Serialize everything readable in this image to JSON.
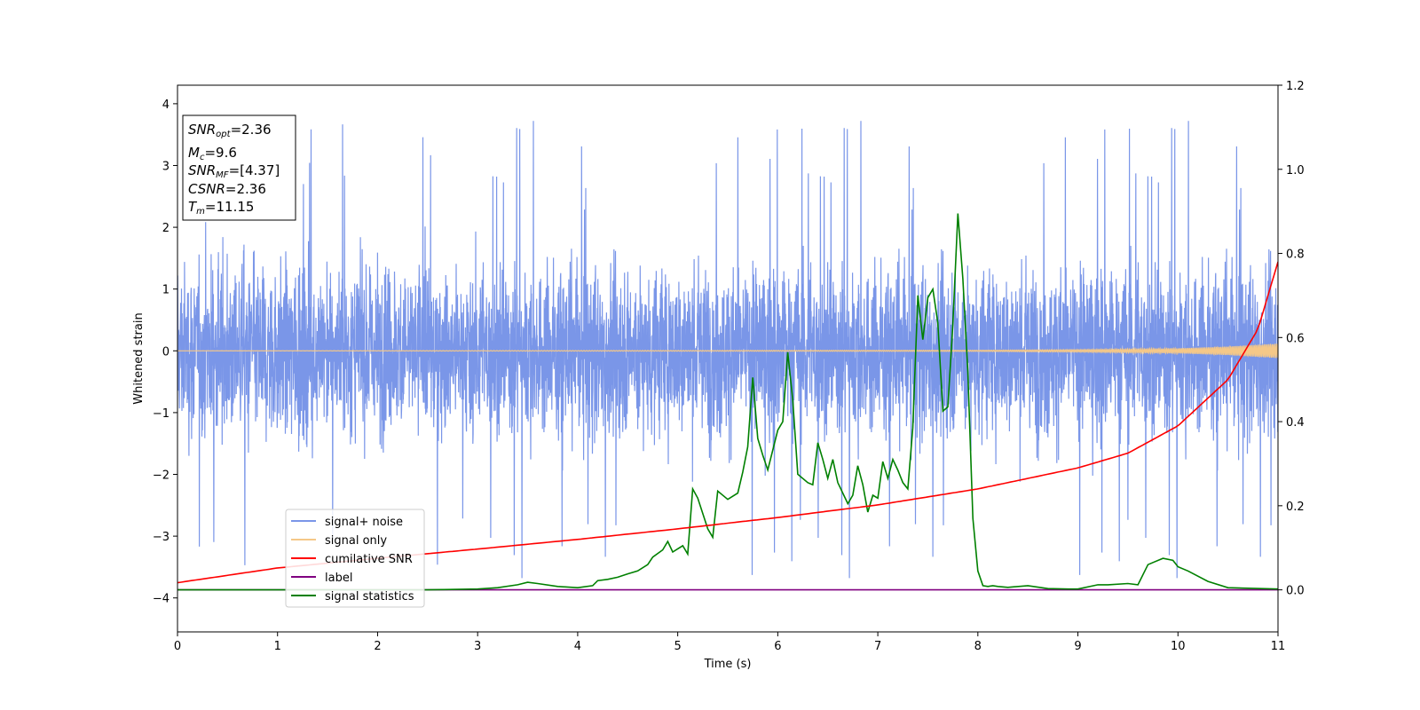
{
  "chart_data": {
    "type": "line",
    "title": "",
    "xlabel": "Time (s)",
    "ylabel": "Whitened strain",
    "y2label": "",
    "xlim": [
      0,
      11
    ],
    "ylim": [
      -4.55,
      4.3
    ],
    "y2lim": [
      -0.1,
      1.2
    ],
    "xticks": [
      0,
      1,
      2,
      3,
      4,
      5,
      6,
      7,
      8,
      9,
      10,
      11
    ],
    "yticks": [
      -4,
      -3,
      -2,
      -1,
      0,
      1,
      2,
      3,
      4
    ],
    "y2ticks": [
      "0.0",
      "0.2",
      "0.4",
      "0.6",
      "0.8",
      "1.0",
      "1.2"
    ],
    "grid": false,
    "legend_position": "lower-left",
    "info_box": {
      "position": "top-left",
      "lines": [
        {
          "main": "SNR",
          "sub": "opt",
          "value": "=2.36"
        },
        {
          "main": "M",
          "sub": "c",
          "value": "=9.6"
        },
        {
          "main": "SNR",
          "sub": "MF",
          "value": "=[4.37]"
        },
        {
          "main": "CSNR",
          "sub": "",
          "value": "=2.36"
        },
        {
          "main": "T",
          "sub": "m",
          "value": "=11.15"
        }
      ]
    },
    "series": [
      {
        "name": "signal+ noise",
        "axis": "left",
        "color": "#7a96e8",
        "note": "dense whitened strain noise, roughly uniform band approx -2.3 to +2.3 with spikes to about ±3.9",
        "approx_range": [
          -4.15,
          3.88
        ]
      },
      {
        "name": "signal only",
        "axis": "left",
        "color": "#f5c888",
        "amplitude_x": [
          0,
          8,
          9,
          10,
          10.5,
          11
        ],
        "amplitude_y": [
          0.0,
          0.01,
          0.02,
          0.04,
          0.07,
          0.12
        ]
      },
      {
        "name": "cumilative SNR",
        "axis": "right",
        "color": "#ff0000",
        "x": [
          0,
          1,
          2,
          3,
          4,
          5,
          6,
          7,
          8,
          9,
          9.5,
          10,
          10.5,
          10.8,
          11
        ],
        "y": [
          0.017,
          0.052,
          0.075,
          0.097,
          0.12,
          0.145,
          0.172,
          0.202,
          0.24,
          0.29,
          0.325,
          0.39,
          0.5,
          0.62,
          0.78
        ]
      },
      {
        "name": "label",
        "axis": "right",
        "color": "#800080",
        "x": [
          0,
          11
        ],
        "y": [
          0.0,
          0.0
        ]
      },
      {
        "name": "signal statistics",
        "axis": "right",
        "color": "#008000",
        "x": [
          0,
          0.5,
          1,
          1.5,
          2,
          2.5,
          3,
          3.2,
          3.4,
          3.5,
          3.6,
          3.8,
          4.0,
          4.15,
          4.2,
          4.3,
          4.4,
          4.5,
          4.6,
          4.7,
          4.75,
          4.85,
          4.9,
          4.95,
          5.05,
          5.1,
          5.15,
          5.2,
          5.3,
          5.35,
          5.4,
          5.5,
          5.6,
          5.65,
          5.7,
          5.75,
          5.8,
          5.85,
          5.9,
          6.0,
          6.05,
          6.1,
          6.15,
          6.2,
          6.3,
          6.35,
          6.4,
          6.45,
          6.5,
          6.55,
          6.6,
          6.7,
          6.75,
          6.8,
          6.85,
          6.9,
          6.95,
          7.0,
          7.05,
          7.1,
          7.15,
          7.2,
          7.25,
          7.3,
          7.35,
          7.4,
          7.45,
          7.5,
          7.55,
          7.6,
          7.65,
          7.7,
          7.75,
          7.8,
          7.85,
          7.9,
          7.95,
          8.0,
          8.05,
          8.1,
          8.15,
          8.2,
          8.3,
          8.5,
          8.7,
          8.9,
          9.0,
          9.2,
          9.3,
          9.5,
          9.6,
          9.7,
          9.75,
          9.85,
          9.95,
          10.0,
          10.1,
          10.3,
          10.5,
          11
        ],
        "y": [
          0.0,
          0.0,
          0.0,
          0.0,
          0.0,
          0.0,
          0.002,
          0.005,
          0.012,
          0.018,
          0.015,
          0.008,
          0.005,
          0.01,
          0.022,
          0.025,
          0.03,
          0.038,
          0.045,
          0.06,
          0.078,
          0.095,
          0.115,
          0.09,
          0.105,
          0.085,
          0.24,
          0.218,
          0.145,
          0.125,
          0.235,
          0.215,
          0.23,
          0.28,
          0.34,
          0.505,
          0.36,
          0.32,
          0.285,
          0.38,
          0.4,
          0.565,
          0.45,
          0.275,
          0.255,
          0.25,
          0.35,
          0.31,
          0.265,
          0.31,
          0.255,
          0.205,
          0.225,
          0.295,
          0.25,
          0.185,
          0.225,
          0.218,
          0.305,
          0.265,
          0.31,
          0.285,
          0.255,
          0.24,
          0.385,
          0.7,
          0.595,
          0.695,
          0.715,
          0.635,
          0.425,
          0.435,
          0.63,
          0.895,
          0.74,
          0.52,
          0.17,
          0.045,
          0.01,
          0.008,
          0.01,
          0.008,
          0.006,
          0.01,
          0.003,
          0.002,
          0.002,
          0.012,
          0.012,
          0.015,
          0.012,
          0.06,
          0.065,
          0.075,
          0.07,
          0.055,
          0.045,
          0.02,
          0.005,
          0.002
        ]
      }
    ]
  }
}
